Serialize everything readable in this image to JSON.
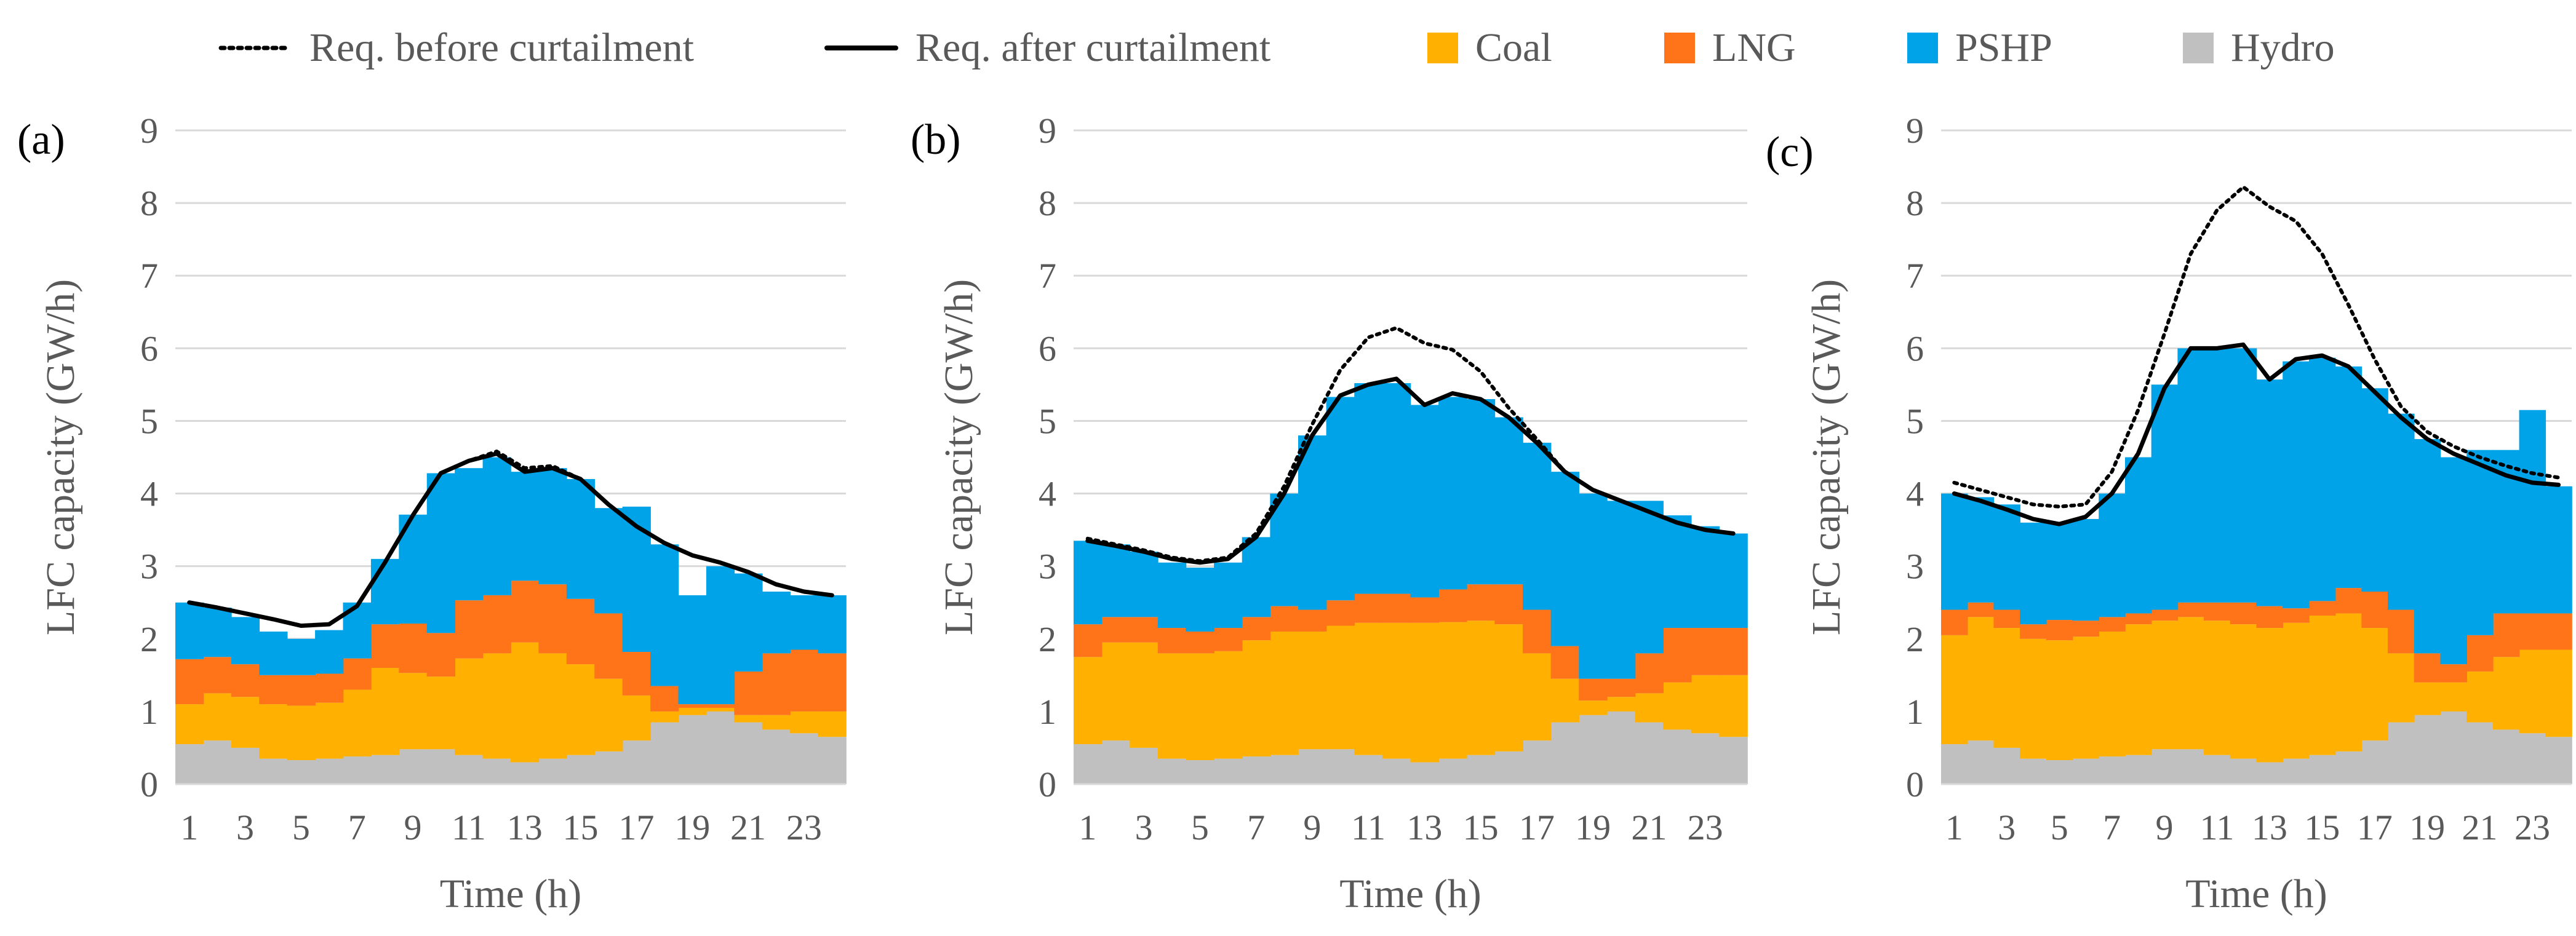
{
  "legend": [
    {
      "key": "req_before",
      "label": "Req. before curtailment",
      "style": "dotted",
      "color": "#000000"
    },
    {
      "key": "req_after",
      "label": "Req. after curtailment",
      "style": "solid",
      "color": "#000000"
    },
    {
      "key": "coal",
      "label": "Coal",
      "style": "box",
      "color": "#FFB000"
    },
    {
      "key": "lng",
      "label": "LNG",
      "style": "box",
      "color": "#FF7418"
    },
    {
      "key": "pshp",
      "label": "PSHP",
      "style": "box",
      "color": "#00A2E8"
    },
    {
      "key": "hydro",
      "label": "Hydro",
      "style": "box",
      "color": "#C0C0C0"
    }
  ],
  "chart_data": [
    {
      "type": "area",
      "panel_label": "(a)",
      "xlabel": "Time (h)",
      "ylabel": "LFC capacity (GW/h)",
      "ylim": [
        0,
        9
      ],
      "yticks": [
        0,
        1,
        2,
        3,
        4,
        5,
        6,
        7,
        8,
        9
      ],
      "x": [
        1,
        2,
        3,
        4,
        5,
        6,
        7,
        8,
        9,
        10,
        11,
        12,
        13,
        14,
        15,
        16,
        17,
        18,
        19,
        20,
        21,
        22,
        23,
        24
      ],
      "xtick_labels": [
        "1",
        "3",
        "5",
        "7",
        "9",
        "11",
        "13",
        "15",
        "17",
        "19",
        "21",
        "23"
      ],
      "grid": true,
      "stack_order": [
        "hydro",
        "coal",
        "lng",
        "pshp"
      ],
      "series": [
        {
          "name": "Hydro",
          "key": "hydro",
          "values": [
            0.55,
            0.6,
            0.5,
            0.35,
            0.33,
            0.35,
            0.38,
            0.4,
            0.48,
            0.48,
            0.4,
            0.35,
            0.3,
            0.35,
            0.4,
            0.45,
            0.6,
            0.85,
            0.95,
            1.0,
            0.85,
            0.75,
            0.7,
            0.65
          ]
        },
        {
          "name": "Coal",
          "key": "coal",
          "values": [
            0.55,
            0.65,
            0.7,
            0.75,
            0.75,
            0.77,
            0.92,
            1.2,
            1.05,
            1.0,
            1.33,
            1.45,
            1.65,
            1.45,
            1.25,
            1.0,
            0.62,
            0.15,
            0.1,
            0.05,
            0.1,
            0.2,
            0.3,
            0.35
          ]
        },
        {
          "name": "LNG",
          "key": "lng",
          "values": [
            0.62,
            0.5,
            0.45,
            0.4,
            0.42,
            0.4,
            0.43,
            0.6,
            0.68,
            0.6,
            0.8,
            0.8,
            0.85,
            0.95,
            0.9,
            0.9,
            0.6,
            0.35,
            0.05,
            0.05,
            0.6,
            0.85,
            0.85,
            0.8
          ]
        },
        {
          "name": "PSHP",
          "key": "pshp",
          "values": [
            0.78,
            0.68,
            0.65,
            0.6,
            0.5,
            0.6,
            0.77,
            0.9,
            1.5,
            2.2,
            1.82,
            1.9,
            1.5,
            1.6,
            1.65,
            1.45,
            2.0,
            1.95,
            1.5,
            1.9,
            1.35,
            0.85,
            0.75,
            0.8
          ]
        },
        {
          "name": "Req. after curtailment",
          "key": "req_after",
          "values": [
            2.5,
            2.43,
            2.35,
            2.27,
            2.18,
            2.2,
            2.45,
            3.05,
            3.7,
            4.28,
            4.45,
            4.55,
            4.3,
            4.35,
            4.2,
            3.85,
            3.55,
            3.32,
            3.15,
            3.05,
            2.92,
            2.75,
            2.65,
            2.6
          ]
        },
        {
          "name": "Req. before curtailment",
          "key": "req_before",
          "values": [
            2.5,
            2.43,
            2.35,
            2.27,
            2.18,
            2.2,
            2.45,
            3.05,
            3.7,
            4.28,
            4.45,
            4.58,
            4.35,
            4.38,
            4.2,
            3.85,
            3.55,
            3.32,
            3.15,
            3.05,
            2.92,
            2.75,
            2.65,
            2.6
          ]
        }
      ]
    },
    {
      "type": "area",
      "panel_label": "(b)",
      "xlabel": "Time (h)",
      "ylabel": "LFC capacity (GW/h)",
      "ylim": [
        0,
        9
      ],
      "yticks": [
        0,
        1,
        2,
        3,
        4,
        5,
        6,
        7,
        8,
        9
      ],
      "x": [
        1,
        2,
        3,
        4,
        5,
        6,
        7,
        8,
        9,
        10,
        11,
        12,
        13,
        14,
        15,
        16,
        17,
        18,
        19,
        20,
        21,
        22,
        23,
        24
      ],
      "xtick_labels": [
        "1",
        "3",
        "5",
        "7",
        "9",
        "11",
        "13",
        "15",
        "17",
        "19",
        "21",
        "23"
      ],
      "grid": true,
      "stack_order": [
        "hydro",
        "coal",
        "lng",
        "pshp"
      ],
      "series": [
        {
          "name": "Hydro",
          "key": "hydro",
          "values": [
            0.55,
            0.6,
            0.5,
            0.35,
            0.33,
            0.35,
            0.38,
            0.4,
            0.48,
            0.48,
            0.4,
            0.35,
            0.3,
            0.35,
            0.4,
            0.45,
            0.6,
            0.85,
            0.95,
            1.0,
            0.85,
            0.75,
            0.7,
            0.65
          ]
        },
        {
          "name": "Coal",
          "key": "coal",
          "values": [
            1.2,
            1.35,
            1.45,
            1.45,
            1.47,
            1.48,
            1.6,
            1.7,
            1.62,
            1.7,
            1.82,
            1.87,
            1.92,
            1.88,
            1.85,
            1.75,
            1.2,
            0.6,
            0.2,
            0.2,
            0.4,
            0.65,
            0.8,
            0.85
          ]
        },
        {
          "name": "LNG",
          "key": "lng",
          "values": [
            0.45,
            0.35,
            0.35,
            0.35,
            0.3,
            0.32,
            0.32,
            0.35,
            0.3,
            0.35,
            0.4,
            0.4,
            0.35,
            0.45,
            0.5,
            0.55,
            0.6,
            0.45,
            0.3,
            0.25,
            0.55,
            0.75,
            0.65,
            0.65
          ]
        },
        {
          "name": "PSHP",
          "key": "pshp",
          "values": [
            1.15,
            1.0,
            0.9,
            0.9,
            0.88,
            0.9,
            1.1,
            1.55,
            2.4,
            2.8,
            2.9,
            2.9,
            2.65,
            2.65,
            2.55,
            2.3,
            2.3,
            2.4,
            2.55,
            2.45,
            2.1,
            1.55,
            1.4,
            1.3
          ]
        },
        {
          "name": "Req. after curtailment",
          "key": "req_after",
          "values": [
            3.35,
            3.28,
            3.2,
            3.1,
            3.05,
            3.1,
            3.4,
            4.0,
            4.8,
            5.35,
            5.5,
            5.58,
            5.22,
            5.38,
            5.3,
            5.05,
            4.7,
            4.3,
            4.05,
            3.9,
            3.75,
            3.6,
            3.5,
            3.45
          ]
        },
        {
          "name": "Req. before curtailment",
          "key": "req_before",
          "values": [
            3.38,
            3.3,
            3.22,
            3.12,
            3.07,
            3.12,
            3.45,
            4.1,
            4.95,
            5.7,
            6.15,
            6.28,
            6.07,
            5.98,
            5.68,
            5.18,
            4.75,
            4.3,
            4.05,
            3.9,
            3.75,
            3.6,
            3.5,
            3.45
          ]
        }
      ]
    },
    {
      "type": "area",
      "panel_label": "(c)",
      "xlabel": "Time (h)",
      "ylabel": "LFC capacity (GW/h)",
      "ylim": [
        0,
        9
      ],
      "yticks": [
        0,
        1,
        2,
        3,
        4,
        5,
        6,
        7,
        8,
        9
      ],
      "x": [
        1,
        2,
        3,
        4,
        5,
        6,
        7,
        8,
        9,
        10,
        11,
        12,
        13,
        14,
        15,
        16,
        17,
        18,
        19,
        20,
        21,
        22,
        23,
        24
      ],
      "xtick_labels": [
        "1",
        "3",
        "5",
        "7",
        "9",
        "11",
        "13",
        "15",
        "17",
        "19",
        "21",
        "23"
      ],
      "grid": true,
      "stack_order": [
        "hydro",
        "coal",
        "lng",
        "pshp"
      ],
      "series": [
        {
          "name": "Hydro",
          "key": "hydro",
          "values": [
            0.55,
            0.6,
            0.5,
            0.35,
            0.33,
            0.35,
            0.38,
            0.4,
            0.48,
            0.48,
            0.4,
            0.35,
            0.3,
            0.35,
            0.4,
            0.45,
            0.6,
            0.85,
            0.95,
            1.0,
            0.85,
            0.75,
            0.7,
            0.65
          ]
        },
        {
          "name": "Coal",
          "key": "coal",
          "values": [
            1.5,
            1.7,
            1.65,
            1.65,
            1.65,
            1.68,
            1.72,
            1.8,
            1.77,
            1.82,
            1.85,
            1.85,
            1.85,
            1.87,
            1.92,
            1.9,
            1.55,
            0.95,
            0.45,
            0.4,
            0.7,
            1.0,
            1.15,
            1.2
          ]
        },
        {
          "name": "LNG",
          "key": "lng",
          "values": [
            0.35,
            0.2,
            0.25,
            0.2,
            0.28,
            0.22,
            0.2,
            0.15,
            0.15,
            0.2,
            0.25,
            0.3,
            0.3,
            0.2,
            0.2,
            0.35,
            0.5,
            0.6,
            0.4,
            0.25,
            0.5,
            0.6,
            0.5,
            0.5
          ]
        },
        {
          "name": "PSHP",
          "key": "pshp",
          "values": [
            1.6,
            1.45,
            1.45,
            1.4,
            1.34,
            1.4,
            1.7,
            2.15,
            3.1,
            3.5,
            3.5,
            3.5,
            3.12,
            3.4,
            3.35,
            3.05,
            2.8,
            2.7,
            2.95,
            2.85,
            2.55,
            2.25,
            2.8,
            1.75
          ]
        },
        {
          "name": "Req. after curtailment",
          "key": "req_after",
          "values": [
            4.0,
            3.9,
            3.78,
            3.65,
            3.58,
            3.68,
            4.0,
            4.55,
            5.45,
            6.0,
            6.0,
            6.05,
            5.57,
            5.85,
            5.9,
            5.75,
            5.4,
            5.05,
            4.75,
            4.55,
            4.4,
            4.25,
            4.15,
            4.12
          ]
        },
        {
          "name": "Req. before curtailment",
          "key": "req_before",
          "values": [
            4.15,
            4.05,
            3.95,
            3.85,
            3.82,
            3.85,
            4.3,
            5.15,
            6.2,
            7.3,
            7.9,
            8.22,
            7.95,
            7.75,
            7.3,
            6.6,
            5.85,
            5.2,
            4.85,
            4.65,
            4.5,
            4.38,
            4.28,
            4.22
          ]
        }
      ]
    }
  ]
}
